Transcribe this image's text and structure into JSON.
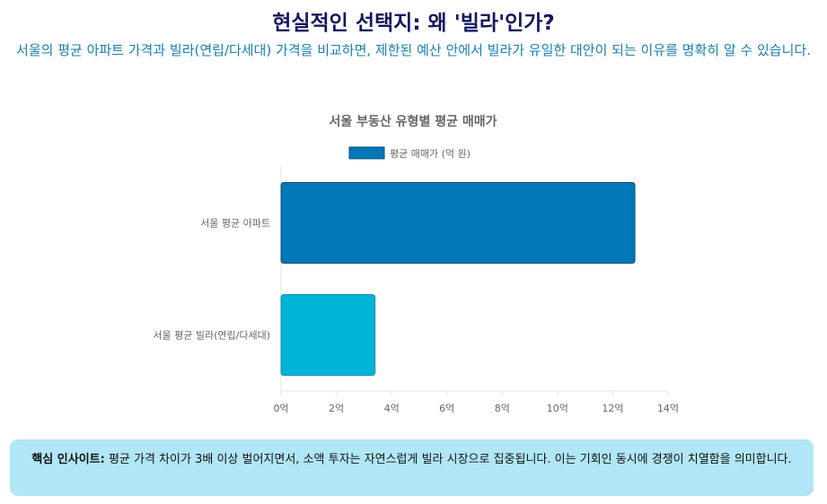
{
  "header": {
    "title": "현실적인 선택지: 왜 '빌라'인가?",
    "subtitle": "서울의 평균 아파트 가격과 빌라(연립/다세대) 가격을 비교하면, 제한된 예산 안에서 빌라가 유일한 대안이 되는 이유를 명확히 알 수 있습니다."
  },
  "chart_data": {
    "type": "bar",
    "orientation": "horizontal",
    "title": "서울 부동산 유형별 평균 매매가",
    "legend_position": "top",
    "categories": [
      "서울 평균 아파트",
      "서울 평균 빌라(연립/다세대)"
    ],
    "series": [
      {
        "name": "평균 매매가 (억 원)",
        "values": [
          12.8,
          3.4
        ]
      }
    ],
    "bar_colors": [
      "#0077b6",
      "#00b4d8"
    ],
    "xlim": [
      0,
      14
    ],
    "xticks": [
      "0억",
      "2억",
      "4억",
      "6억",
      "8억",
      "10억",
      "12억",
      "14억"
    ],
    "xtick_values": [
      0,
      2,
      4,
      6,
      8,
      10,
      12,
      14
    ],
    "grid": false
  },
  "insight": {
    "label": "핵심 인사이트:",
    "text": " 평균 가격 차이가 3배 이상 벌어지면서, 소액 투자는 자연스럽게 빌라 시장으로 집중됩니다. 이는 기회인 동시에 경쟁이 치열함을 의미합니다."
  },
  "colors": {
    "title": "#14185e",
    "subtitle": "#1a7fae",
    "insight_bg": "#b0e6f5"
  }
}
